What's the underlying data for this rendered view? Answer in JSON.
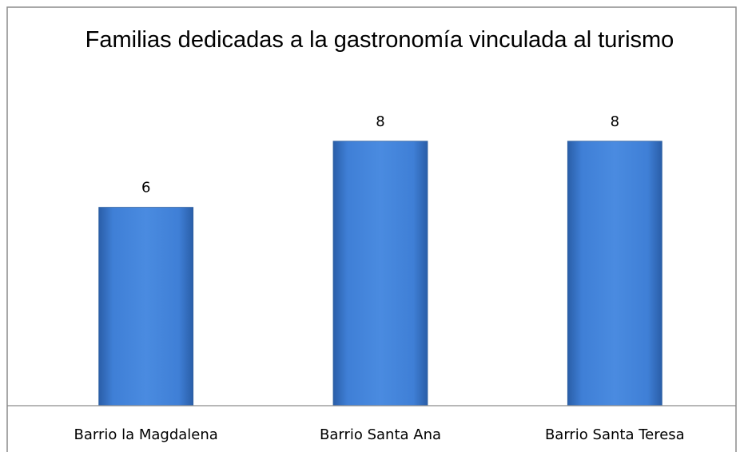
{
  "chart_data": {
    "type": "bar",
    "title": "Familias dedicadas a la gastronomía vinculada al turismo",
    "categories": [
      "Barrio la Magdalena",
      "Barrio Santa Ana",
      "Barrio Santa Teresa"
    ],
    "values": [
      6,
      8,
      8
    ],
    "color": "#3a78d0",
    "ylim": [
      0,
      10
    ]
  }
}
